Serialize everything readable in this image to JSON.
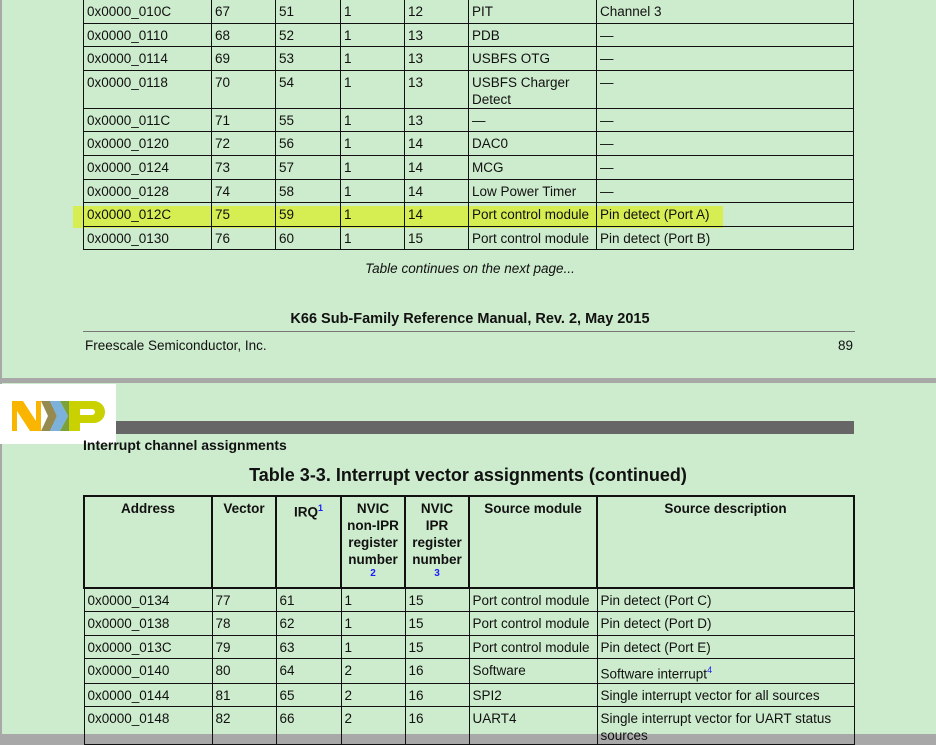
{
  "page1": {
    "rows": [
      [
        "0x0000_010C",
        "67",
        "51",
        "1",
        "12",
        "PIT",
        "Channel 3"
      ],
      [
        "0x0000_0110",
        "68",
        "52",
        "1",
        "13",
        "PDB",
        "—"
      ],
      [
        "0x0000_0114",
        "69",
        "53",
        "1",
        "13",
        "USBFS OTG",
        "—"
      ],
      [
        "0x0000_0118",
        "70",
        "54",
        "1",
        "13",
        "USBFS Charger Detect",
        "—"
      ],
      [
        "0x0000_011C",
        "71",
        "55",
        "1",
        "13",
        "—",
        "—"
      ],
      [
        "0x0000_0120",
        "72",
        "56",
        "1",
        "14",
        "DAC0",
        "—"
      ],
      [
        "0x0000_0124",
        "73",
        "57",
        "1",
        "14",
        "MCG",
        "—"
      ],
      [
        "0x0000_0128",
        "74",
        "58",
        "1",
        "14",
        "Low Power Timer",
        "—"
      ],
      [
        "0x0000_012C",
        "75",
        "59",
        "1",
        "14",
        "Port control module",
        "Pin detect (Port A)"
      ],
      [
        "0x0000_0130",
        "76",
        "60",
        "1",
        "15",
        "Port control module",
        "Pin detect (Port B)"
      ]
    ],
    "highlight_color": "#d8ef3c",
    "continues": "Table continues on the next page...",
    "manual_title": "K66 Sub-Family Reference Manual, Rev. 2, May 2015",
    "publisher": "Freescale Semiconductor, Inc.",
    "page_number": "89"
  },
  "page2": {
    "logo": "NXP",
    "section": "Interrupt channel assignments",
    "table_title": "Table 3-3.  Interrupt vector assignments (continued)",
    "headers": [
      "Address",
      "Vector",
      "IRQ",
      "NVIC non-IPR register number",
      "NVIC IPR register number",
      "Source module",
      "Source description"
    ],
    "footnotes": {
      "irq": "1",
      "nonipr": "2",
      "ipr": "3",
      "sw": "4"
    },
    "rows": [
      [
        "0x0000_0134",
        "77",
        "61",
        "1",
        "15",
        "Port control module",
        "Pin detect (Port C)"
      ],
      [
        "0x0000_0138",
        "78",
        "62",
        "1",
        "15",
        "Port control module",
        "Pin detect (Port D)"
      ],
      [
        "0x0000_013C",
        "79",
        "63",
        "1",
        "15",
        "Port control module",
        "Pin detect (Port E)"
      ],
      [
        "0x0000_0140",
        "80",
        "64",
        "2",
        "16",
        "Software",
        "Software interrupt"
      ],
      [
        "0x0000_0144",
        "81",
        "65",
        "2",
        "16",
        "SPI2",
        "Single interrupt vector for all sources"
      ],
      [
        "0x0000_0148",
        "82",
        "66",
        "2",
        "16",
        "UART4",
        "Single interrupt vector for UART status sources"
      ]
    ]
  }
}
